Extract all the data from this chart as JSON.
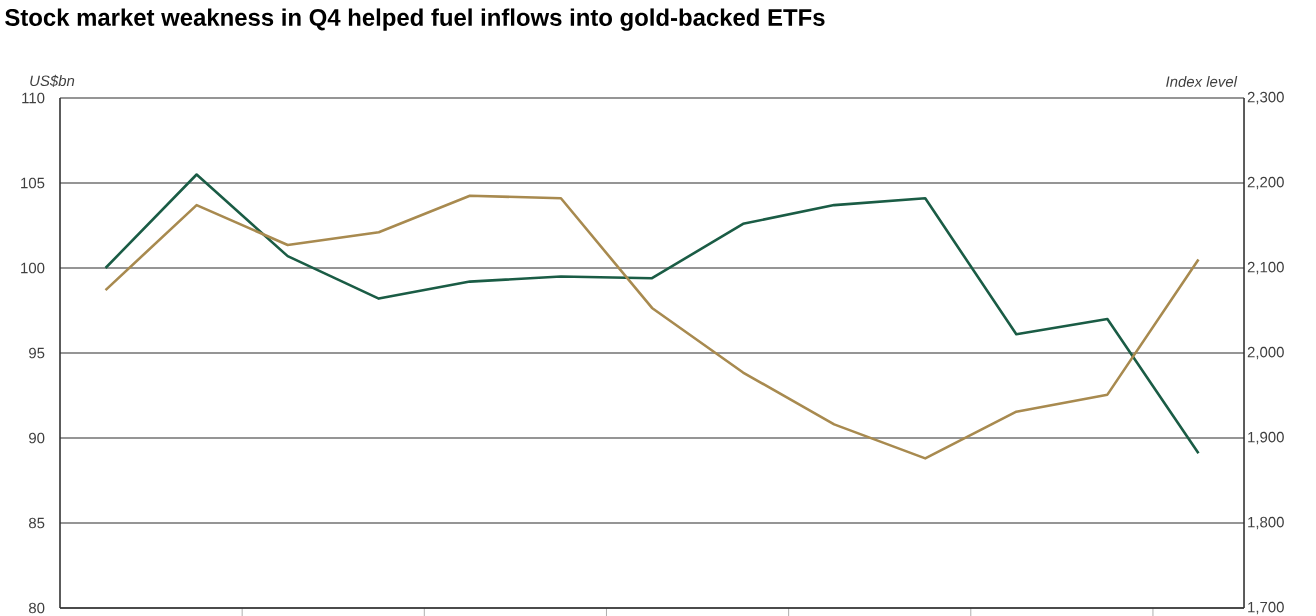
{
  "chart_data": {
    "type": "line",
    "title": "Stock market weakness in Q4 helped fuel inflows into gold-backed ETFs",
    "ylabel": "US$bn",
    "y2label": "Index level",
    "categories": [
      null,
      null,
      null,
      null,
      null,
      null,
      null,
      null,
      null,
      null,
      null,
      null,
      null
    ],
    "series": [
      {
        "color": "#1a5c45",
        "values": [
          100.0,
          105.5,
          100.7,
          98.2,
          99.2,
          99.5,
          99.4,
          102.6,
          103.7,
          104.1,
          96.1,
          97.0,
          89.1
        ]
      },
      {
        "color": "#a88a4f",
        "axis": "y2",
        "values": [
          2074,
          2174,
          2127,
          2142,
          2185,
          2182,
          2053,
          1977,
          1916,
          1876,
          1931,
          1951,
          2110
        ]
      }
    ],
    "ylim": [
      80,
      110
    ],
    "yticks": [
      80,
      85,
      90,
      95,
      100,
      105,
      110
    ],
    "y2lim": [
      1700,
      2300
    ],
    "y2ticks": [
      {
        "value": 1700,
        "label": "1,700"
      },
      {
        "value": 1800,
        "label": "1,800"
      },
      {
        "value": 1900,
        "label": "1,900"
      },
      {
        "value": 2000,
        "label": "2,000"
      },
      {
        "value": 2100,
        "label": "2,100"
      },
      {
        "value": 2200,
        "label": "2,200"
      },
      {
        "value": 2300,
        "label": "2,300"
      }
    ],
    "grid": "y"
  }
}
